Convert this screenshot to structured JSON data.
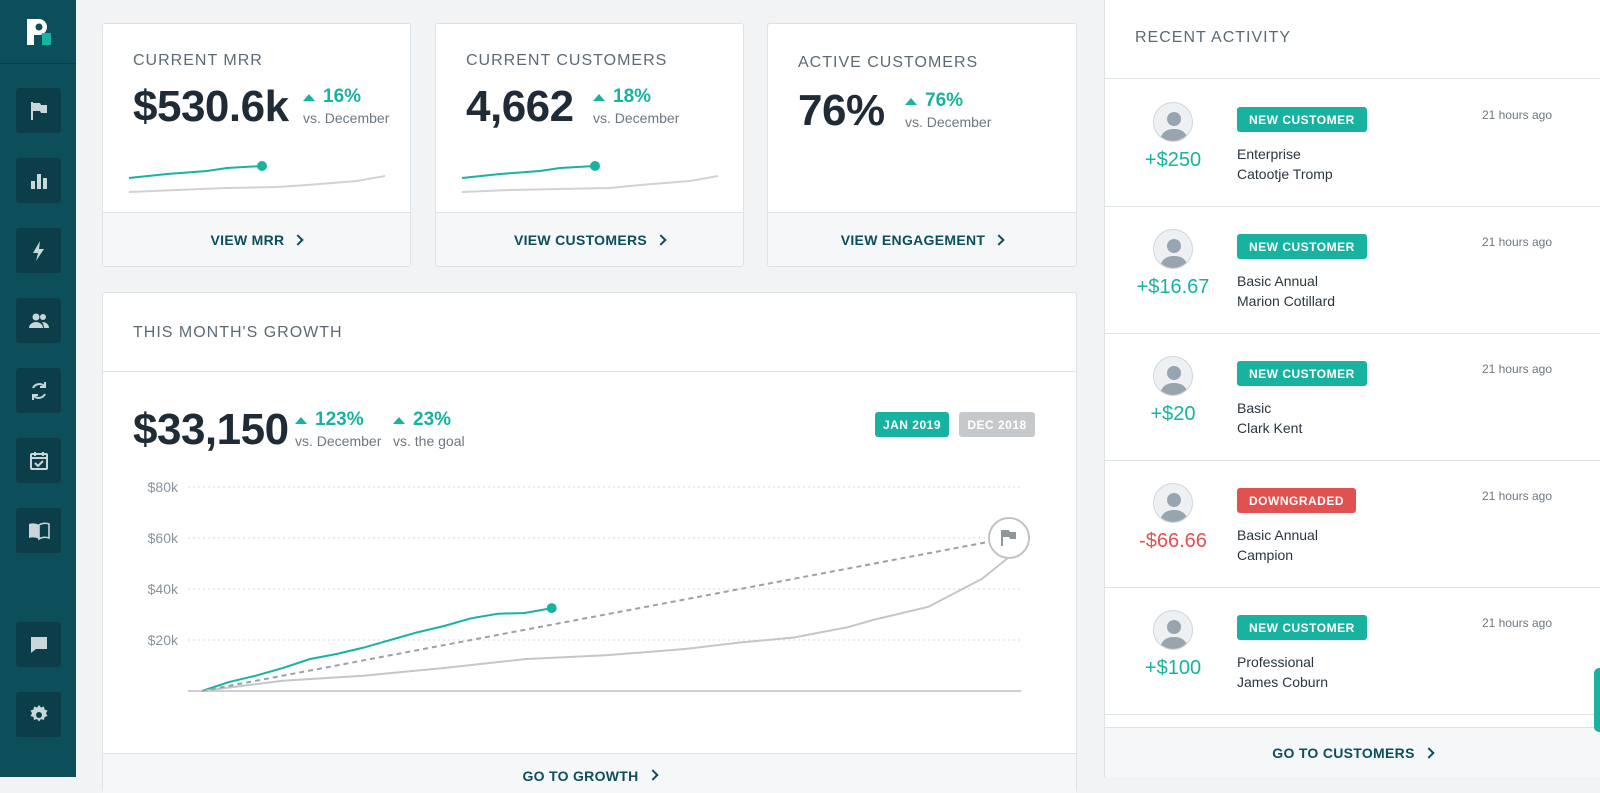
{
  "colors": {
    "sidebar": "#0d4e5b",
    "accent": "#17b3a0",
    "negative": "#e0514f",
    "muted": "#c3c7cb"
  },
  "sidebar": {
    "items": [
      {
        "icon": "flag-icon"
      },
      {
        "icon": "bar-chart-icon"
      },
      {
        "icon": "lightning-icon"
      },
      {
        "icon": "users-icon"
      },
      {
        "icon": "refresh-icon"
      },
      {
        "icon": "calendar-check-icon"
      },
      {
        "icon": "book-icon"
      },
      {
        "icon": "chat-icon"
      },
      {
        "icon": "gear-icon"
      }
    ]
  },
  "metrics": [
    {
      "title": "CURRENT MRR",
      "value": "$530.6k",
      "delta": "16%",
      "sub": "vs. December",
      "link": "VIEW MRR"
    },
    {
      "title": "CURRENT CUSTOMERS",
      "value": "4,662",
      "delta": "18%",
      "sub": "vs. December",
      "link": "VIEW CUSTOMERS"
    },
    {
      "title": "ACTIVE CUSTOMERS",
      "value": "76%",
      "delta": "76%",
      "sub": "vs. December",
      "link": "VIEW ENGAGEMENT"
    }
  ],
  "growth": {
    "title": "THIS MONTH'S GROWTH",
    "value": "$33,150",
    "delta1": "123%",
    "sub1": "vs. December",
    "delta2": "23%",
    "sub2": "vs. the goal",
    "tag_current": "JAN 2019",
    "tag_previous": "DEC 2018",
    "link": "GO TO GROWTH"
  },
  "chart_data": {
    "type": "line",
    "y_ticks": [
      "$80k",
      "$60k",
      "$40k",
      "$20k"
    ],
    "ylim": [
      0,
      80000
    ],
    "x_days": 31,
    "grid": true,
    "series": [
      {
        "name": "JAN 2019",
        "color": "#17b3a0",
        "x": [
          1,
          2,
          3,
          4,
          5,
          6,
          7,
          8,
          9,
          10,
          11,
          12,
          13,
          14
        ],
        "y": [
          0,
          3500,
          6000,
          9000,
          12500,
          14500,
          17000,
          20000,
          23000,
          25500,
          28500,
          30300,
          30600,
          32500
        ]
      },
      {
        "name": "DEC 2018",
        "color": "#c3c7cb",
        "x": [
          1,
          4,
          7,
          10,
          13,
          16,
          19,
          21,
          23,
          25,
          26,
          28,
          30,
          31
        ],
        "y": [
          0,
          4000,
          6000,
          9000,
          12500,
          14000,
          16500,
          19000,
          21000,
          25000,
          28000,
          33000,
          44000,
          52500
        ]
      },
      {
        "color": "#9aa1a7",
        "x": [
          1,
          31
        ],
        "y": [
          0,
          60000
        ]
      }
    ]
  },
  "activity": {
    "title": "RECENT ACTIVITY",
    "items": [
      {
        "badge": "NEW CUSTOMER",
        "badge_color": "#17b3a0",
        "amount": "+$250",
        "negative": false,
        "time": "21 hours ago",
        "plan": "Enterprise",
        "name": "Catootje Tromp"
      },
      {
        "badge": "NEW CUSTOMER",
        "badge_color": "#17b3a0",
        "amount": "+$16.67",
        "negative": false,
        "time": "21 hours ago",
        "plan": "Basic Annual",
        "name": "Marion Cotillard"
      },
      {
        "badge": "NEW CUSTOMER",
        "badge_color": "#17b3a0",
        "amount": "+$20",
        "negative": false,
        "time": "21 hours ago",
        "plan": "Basic",
        "name": "Clark Kent"
      },
      {
        "badge": "DOWNGRADED",
        "badge_color": "#e0514f",
        "amount": "-$66.66",
        "negative": true,
        "time": "21 hours ago",
        "plan": "Basic Annual",
        "name": "Campion"
      },
      {
        "badge": "NEW CUSTOMER",
        "badge_color": "#17b3a0",
        "amount": "+$100",
        "negative": false,
        "time": "21 hours ago",
        "plan": "Professional",
        "name": "James Coburn"
      }
    ],
    "link": "GO TO CUSTOMERS"
  }
}
